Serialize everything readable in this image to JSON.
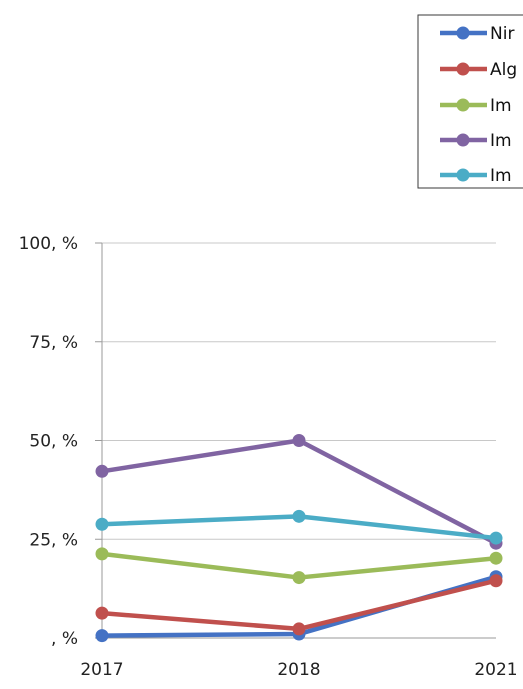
{
  "chart_data": {
    "type": "line",
    "title": "",
    "xlabel": "",
    "ylabel": "",
    "categories": [
      "2017",
      "2018",
      "2021"
    ],
    "ylim": [
      0,
      100
    ],
    "yticks": [
      0,
      25,
      50,
      75,
      100
    ],
    "ytick_labels": [
      ", %",
      "25, %",
      "50, %",
      "75, %",
      "100, %"
    ],
    "grid": true,
    "legend_position": "top-right",
    "series": [
      {
        "name": "Nir",
        "color": "#4472c4",
        "values": [
          0.6,
          1.0,
          15.5
        ]
      },
      {
        "name": "Alg",
        "color": "#c0504d",
        "values": [
          6.3,
          2.3,
          14.5
        ]
      },
      {
        "name": "Im",
        "color": "#9bbb59",
        "values": [
          21.3,
          15.3,
          20.2
        ]
      },
      {
        "name": "Im",
        "color": "#8064a2",
        "values": [
          42.2,
          50.0,
          24.0
        ]
      },
      {
        "name": "Im",
        "color": "#4bacc6",
        "values": [
          28.8,
          30.8,
          25.3
        ]
      }
    ]
  }
}
